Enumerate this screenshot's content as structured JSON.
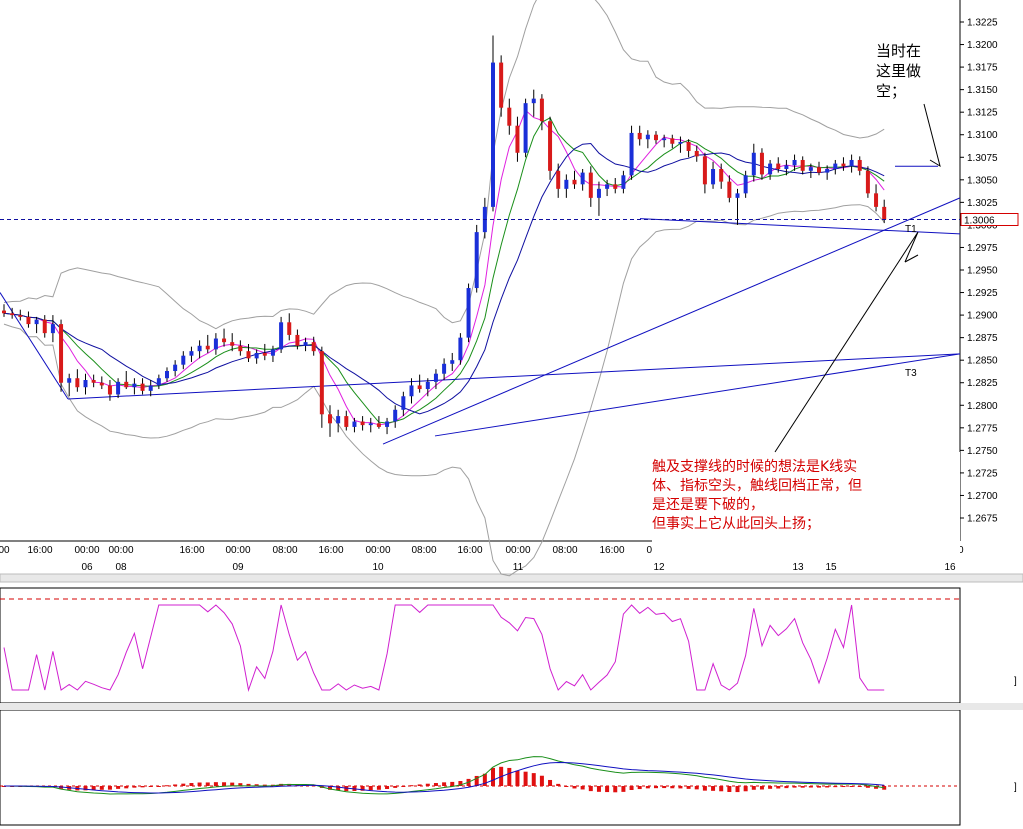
{
  "chart_data": {
    "type": "candlestick",
    "price_axis": {
      "ticks": [
        "1.3225",
        "1.3200",
        "1.3175",
        "1.3150",
        "1.3125",
        "1.3100",
        "1.3075",
        "1.3050",
        "1.3025",
        "1.3000",
        "1.2975",
        "1.2950",
        "1.2925",
        "1.2900",
        "1.2875",
        "1.2850",
        "1.2825",
        "1.2800",
        "1.2775",
        "1.2750",
        "1.2725",
        "1.2700",
        "1.2675"
      ],
      "ylim": [
        1.265,
        1.324
      ],
      "current_price": "1.3006"
    },
    "time_axis": {
      "time_labels": [
        "00",
        "16:00",
        "00:00",
        "00:00",
        "16:00",
        "00:00",
        "08:00",
        "16:00",
        "00:00",
        "08:00",
        "16:00",
        "00:00",
        "08:00",
        "16:00",
        "00:00",
        "00"
      ],
      "date_labels": [
        "06",
        "08",
        "09",
        "10",
        "11",
        "12",
        "13",
        "15",
        "16"
      ]
    },
    "candles": [
      {
        "o": 1.2905,
        "h": 1.2912,
        "l": 1.2898,
        "c": 1.2902
      },
      {
        "o": 1.2902,
        "h": 1.2908,
        "l": 1.2896,
        "c": 1.29
      },
      {
        "o": 1.29,
        "h": 1.2906,
        "l": 1.2894,
        "c": 1.2898
      },
      {
        "o": 1.2898,
        "h": 1.2904,
        "l": 1.2886,
        "c": 1.289
      },
      {
        "o": 1.289,
        "h": 1.2898,
        "l": 1.288,
        "c": 1.2895
      },
      {
        "o": 1.2895,
        "h": 1.29,
        "l": 1.2875,
        "c": 1.288
      },
      {
        "o": 1.288,
        "h": 1.29,
        "l": 1.287,
        "c": 1.289
      },
      {
        "o": 1.289,
        "h": 1.2895,
        "l": 1.2815,
        "c": 1.2825
      },
      {
        "o": 1.2825,
        "h": 1.2835,
        "l": 1.281,
        "c": 1.283
      },
      {
        "o": 1.283,
        "h": 1.284,
        "l": 1.2815,
        "c": 1.282
      },
      {
        "o": 1.282,
        "h": 1.2835,
        "l": 1.2812,
        "c": 1.2828
      },
      {
        "o": 1.2828,
        "h": 1.2834,
        "l": 1.282,
        "c": 1.2825
      },
      {
        "o": 1.2825,
        "h": 1.2832,
        "l": 1.2818,
        "c": 1.2822
      },
      {
        "o": 1.2822,
        "h": 1.2828,
        "l": 1.2805,
        "c": 1.2812
      },
      {
        "o": 1.2812,
        "h": 1.283,
        "l": 1.2808,
        "c": 1.2826
      },
      {
        "o": 1.2826,
        "h": 1.2838,
        "l": 1.2818,
        "c": 1.282
      },
      {
        "o": 1.282,
        "h": 1.283,
        "l": 1.2812,
        "c": 1.2824
      },
      {
        "o": 1.2824,
        "h": 1.283,
        "l": 1.2812,
        "c": 1.2816
      },
      {
        "o": 1.2816,
        "h": 1.2828,
        "l": 1.281,
        "c": 1.2822
      },
      {
        "o": 1.2822,
        "h": 1.2834,
        "l": 1.2818,
        "c": 1.283
      },
      {
        "o": 1.283,
        "h": 1.2842,
        "l": 1.2826,
        "c": 1.2838
      },
      {
        "o": 1.2838,
        "h": 1.285,
        "l": 1.2832,
        "c": 1.2845
      },
      {
        "o": 1.2845,
        "h": 1.286,
        "l": 1.284,
        "c": 1.2855
      },
      {
        "o": 1.2855,
        "h": 1.2865,
        "l": 1.2848,
        "c": 1.286
      },
      {
        "o": 1.286,
        "h": 1.2872,
        "l": 1.2852,
        "c": 1.2866
      },
      {
        "o": 1.2866,
        "h": 1.2878,
        "l": 1.2858,
        "c": 1.2862
      },
      {
        "o": 1.2862,
        "h": 1.288,
        "l": 1.2856,
        "c": 1.2874
      },
      {
        "o": 1.2874,
        "h": 1.2885,
        "l": 1.2865,
        "c": 1.287
      },
      {
        "o": 1.287,
        "h": 1.288,
        "l": 1.286,
        "c": 1.2866
      },
      {
        "o": 1.2866,
        "h": 1.2872,
        "l": 1.2855,
        "c": 1.286
      },
      {
        "o": 1.286,
        "h": 1.2868,
        "l": 1.2848,
        "c": 1.2852
      },
      {
        "o": 1.2852,
        "h": 1.2862,
        "l": 1.2846,
        "c": 1.2858
      },
      {
        "o": 1.2858,
        "h": 1.2868,
        "l": 1.285,
        "c": 1.2855
      },
      {
        "o": 1.2855,
        "h": 1.2866,
        "l": 1.2848,
        "c": 1.2862
      },
      {
        "o": 1.2862,
        "h": 1.2898,
        "l": 1.2858,
        "c": 1.2892
      },
      {
        "o": 1.2892,
        "h": 1.2902,
        "l": 1.2872,
        "c": 1.2878
      },
      {
        "o": 1.2878,
        "h": 1.2884,
        "l": 1.2862,
        "c": 1.2866
      },
      {
        "o": 1.2866,
        "h": 1.2875,
        "l": 1.286,
        "c": 1.287
      },
      {
        "o": 1.287,
        "h": 1.2876,
        "l": 1.2855,
        "c": 1.286
      },
      {
        "o": 1.286,
        "h": 1.2865,
        "l": 1.2775,
        "c": 1.279
      },
      {
        "o": 1.279,
        "h": 1.28,
        "l": 1.2765,
        "c": 1.278
      },
      {
        "o": 1.278,
        "h": 1.2795,
        "l": 1.277,
        "c": 1.2788
      },
      {
        "o": 1.2788,
        "h": 1.2794,
        "l": 1.2772,
        "c": 1.2776
      },
      {
        "o": 1.2776,
        "h": 1.2786,
        "l": 1.277,
        "c": 1.2782
      },
      {
        "o": 1.2782,
        "h": 1.2788,
        "l": 1.2772,
        "c": 1.2778
      },
      {
        "o": 1.2778,
        "h": 1.2786,
        "l": 1.277,
        "c": 1.278
      },
      {
        "o": 1.278,
        "h": 1.2788,
        "l": 1.2774,
        "c": 1.2776
      },
      {
        "o": 1.2776,
        "h": 1.2786,
        "l": 1.2768,
        "c": 1.2782
      },
      {
        "o": 1.2782,
        "h": 1.28,
        "l": 1.2775,
        "c": 1.2795
      },
      {
        "o": 1.2795,
        "h": 1.2815,
        "l": 1.2788,
        "c": 1.281
      },
      {
        "o": 1.281,
        "h": 1.283,
        "l": 1.2802,
        "c": 1.2822
      },
      {
        "o": 1.2822,
        "h": 1.2834,
        "l": 1.2814,
        "c": 1.2818
      },
      {
        "o": 1.2818,
        "h": 1.283,
        "l": 1.281,
        "c": 1.2826
      },
      {
        "o": 1.2826,
        "h": 1.284,
        "l": 1.2818,
        "c": 1.2835
      },
      {
        "o": 1.2835,
        "h": 1.2852,
        "l": 1.2828,
        "c": 1.2846
      },
      {
        "o": 1.2846,
        "h": 1.2858,
        "l": 1.2838,
        "c": 1.285
      },
      {
        "o": 1.285,
        "h": 1.288,
        "l": 1.2845,
        "c": 1.2875
      },
      {
        "o": 1.2875,
        "h": 1.2935,
        "l": 1.287,
        "c": 1.293
      },
      {
        "o": 1.293,
        "h": 1.3,
        "l": 1.2925,
        "c": 1.2992
      },
      {
        "o": 1.2992,
        "h": 1.303,
        "l": 1.2985,
        "c": 1.302
      },
      {
        "o": 1.302,
        "h": 1.321,
        "l": 1.3015,
        "c": 1.318
      },
      {
        "o": 1.318,
        "h": 1.3188,
        "l": 1.312,
        "c": 1.313
      },
      {
        "o": 1.313,
        "h": 1.314,
        "l": 1.31,
        "c": 1.311
      },
      {
        "o": 1.311,
        "h": 1.312,
        "l": 1.307,
        "c": 1.308
      },
      {
        "o": 1.308,
        "h": 1.314,
        "l": 1.3075,
        "c": 1.3135
      },
      {
        "o": 1.3135,
        "h": 1.315,
        "l": 1.312,
        "c": 1.314
      },
      {
        "o": 1.314,
        "h": 1.3145,
        "l": 1.3105,
        "c": 1.3115
      },
      {
        "o": 1.3115,
        "h": 1.312,
        "l": 1.305,
        "c": 1.306
      },
      {
        "o": 1.306,
        "h": 1.3068,
        "l": 1.303,
        "c": 1.304
      },
      {
        "o": 1.304,
        "h": 1.3056,
        "l": 1.303,
        "c": 1.305
      },
      {
        "o": 1.305,
        "h": 1.306,
        "l": 1.304,
        "c": 1.3045
      },
      {
        "o": 1.3045,
        "h": 1.3062,
        "l": 1.3038,
        "c": 1.3058
      },
      {
        "o": 1.3058,
        "h": 1.3065,
        "l": 1.302,
        "c": 1.303
      },
      {
        "o": 1.303,
        "h": 1.3048,
        "l": 1.301,
        "c": 1.304
      },
      {
        "o": 1.304,
        "h": 1.305,
        "l": 1.3032,
        "c": 1.3045
      },
      {
        "o": 1.3045,
        "h": 1.3052,
        "l": 1.3035,
        "c": 1.304
      },
      {
        "o": 1.304,
        "h": 1.306,
        "l": 1.3035,
        "c": 1.3055
      },
      {
        "o": 1.3055,
        "h": 1.311,
        "l": 1.305,
        "c": 1.3102
      },
      {
        "o": 1.3102,
        "h": 1.311,
        "l": 1.3088,
        "c": 1.3095
      },
      {
        "o": 1.3095,
        "h": 1.3105,
        "l": 1.3085,
        "c": 1.31
      },
      {
        "o": 1.31,
        "h": 1.3104,
        "l": 1.309,
        "c": 1.3094
      },
      {
        "o": 1.3094,
        "h": 1.31,
        "l": 1.3086,
        "c": 1.3096
      },
      {
        "o": 1.3096,
        "h": 1.31,
        "l": 1.3085,
        "c": 1.309
      },
      {
        "o": 1.309,
        "h": 1.3098,
        "l": 1.308,
        "c": 1.3092
      },
      {
        "o": 1.3092,
        "h": 1.3095,
        "l": 1.3075,
        "c": 1.3082
      },
      {
        "o": 1.3082,
        "h": 1.3088,
        "l": 1.307,
        "c": 1.3076
      },
      {
        "o": 1.3076,
        "h": 1.308,
        "l": 1.3035,
        "c": 1.3045
      },
      {
        "o": 1.3045,
        "h": 1.307,
        "l": 1.304,
        "c": 1.3062
      },
      {
        "o": 1.3062,
        "h": 1.3068,
        "l": 1.304,
        "c": 1.3048
      },
      {
        "o": 1.3048,
        "h": 1.3055,
        "l": 1.3025,
        "c": 1.303
      },
      {
        "o": 1.303,
        "h": 1.304,
        "l": 1.3,
        "c": 1.3035
      },
      {
        "o": 1.3035,
        "h": 1.306,
        "l": 1.303,
        "c": 1.3055
      },
      {
        "o": 1.3055,
        "h": 1.309,
        "l": 1.3048,
        "c": 1.308
      },
      {
        "o": 1.308,
        "h": 1.3085,
        "l": 1.305,
        "c": 1.3056
      },
      {
        "o": 1.3056,
        "h": 1.3072,
        "l": 1.305,
        "c": 1.3068
      },
      {
        "o": 1.3068,
        "h": 1.3075,
        "l": 1.3058,
        "c": 1.3062
      },
      {
        "o": 1.3062,
        "h": 1.3072,
        "l": 1.3055,
        "c": 1.3066
      },
      {
        "o": 1.3066,
        "h": 1.3078,
        "l": 1.306,
        "c": 1.3072
      },
      {
        "o": 1.3072,
        "h": 1.3076,
        "l": 1.3056,
        "c": 1.306
      },
      {
        "o": 1.306,
        "h": 1.3068,
        "l": 1.3052,
        "c": 1.3064
      },
      {
        "o": 1.3064,
        "h": 1.307,
        "l": 1.3055,
        "c": 1.3058
      },
      {
        "o": 1.3058,
        "h": 1.3066,
        "l": 1.305,
        "c": 1.3062
      },
      {
        "o": 1.3062,
        "h": 1.3072,
        "l": 1.3056,
        "c": 1.3068
      },
      {
        "o": 1.3068,
        "h": 1.3075,
        "l": 1.306,
        "c": 1.3065
      },
      {
        "o": 1.3065,
        "h": 1.3078,
        "l": 1.3058,
        "c": 1.3072
      },
      {
        "o": 1.3072,
        "h": 1.3076,
        "l": 1.3055,
        "c": 1.306
      },
      {
        "o": 1.306,
        "h": 1.3065,
        "l": 1.303,
        "c": 1.3035
      },
      {
        "o": 1.3035,
        "h": 1.3045,
        "l": 1.3015,
        "c": 1.302
      },
      {
        "o": 1.302,
        "h": 1.3028,
        "l": 1.3002,
        "c": 1.3006
      }
    ],
    "indicators": [
      "Bollinger Bands",
      "Moving Averages",
      "Oscillator",
      "MACD"
    ],
    "annotations": {
      "top_right": [
        "当时在",
        "这里做",
        "空；"
      ],
      "bottom": [
        "触及支撑线的时候的想法是K线实",
        "体、指标空头，触线回档正常，但",
        "是还是要下破的，",
        "但事实上它从此回头上扬；"
      ],
      "trendline_labels": [
        "T1",
        "T3"
      ]
    },
    "colors": {
      "up": "#1a2fd8",
      "down": "#d81a1a",
      "bands": "#a0a0a0",
      "trend": "#1010c0",
      "oscillator": "#d020d0",
      "annotation": "#d40000",
      "macd_fast": "#1a8f1a",
      "macd_slow": "#1010c0"
    }
  }
}
